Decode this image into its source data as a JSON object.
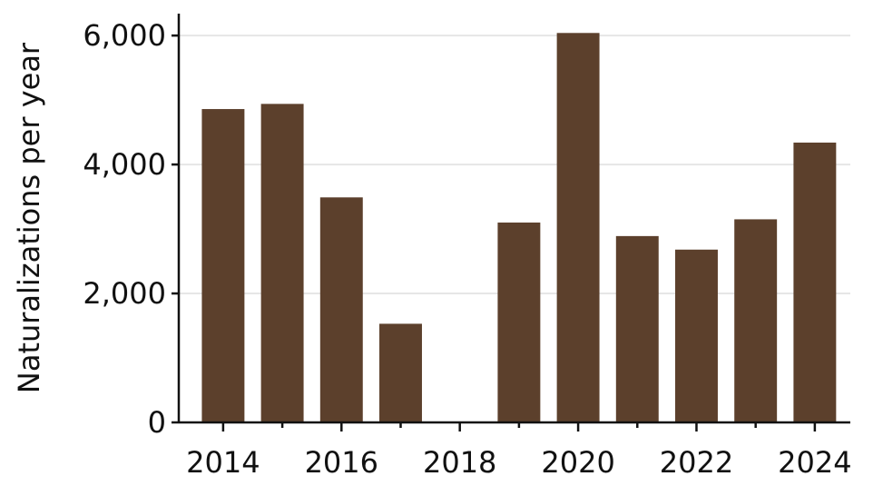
{
  "chart_data": {
    "type": "bar",
    "ylabel": "Naturalizations per year",
    "x": [
      2014,
      2015,
      2016,
      2017,
      2018,
      2019,
      2020,
      2021,
      2022,
      2023,
      2024
    ],
    "values": [
      4860,
      4940,
      3490,
      1530,
      0,
      3100,
      6040,
      2890,
      2680,
      3150,
      4340
    ],
    "color": "#5c402c",
    "xlim": [
      2013.25,
      2024.6
    ],
    "xticks": [
      2014,
      2016,
      2018,
      2020,
      2022,
      2024
    ],
    "xminorticks": [
      2015,
      2017,
      2019,
      2021,
      2023
    ],
    "ylim": [
      0,
      6340
    ],
    "yticks": [
      0,
      {
        "value": 2000,
        "label": "2,000"
      },
      {
        "value": 4000,
        "label": "4,000"
      },
      {
        "value": 6000,
        "label": "6,000"
      }
    ],
    "grid": true
  }
}
